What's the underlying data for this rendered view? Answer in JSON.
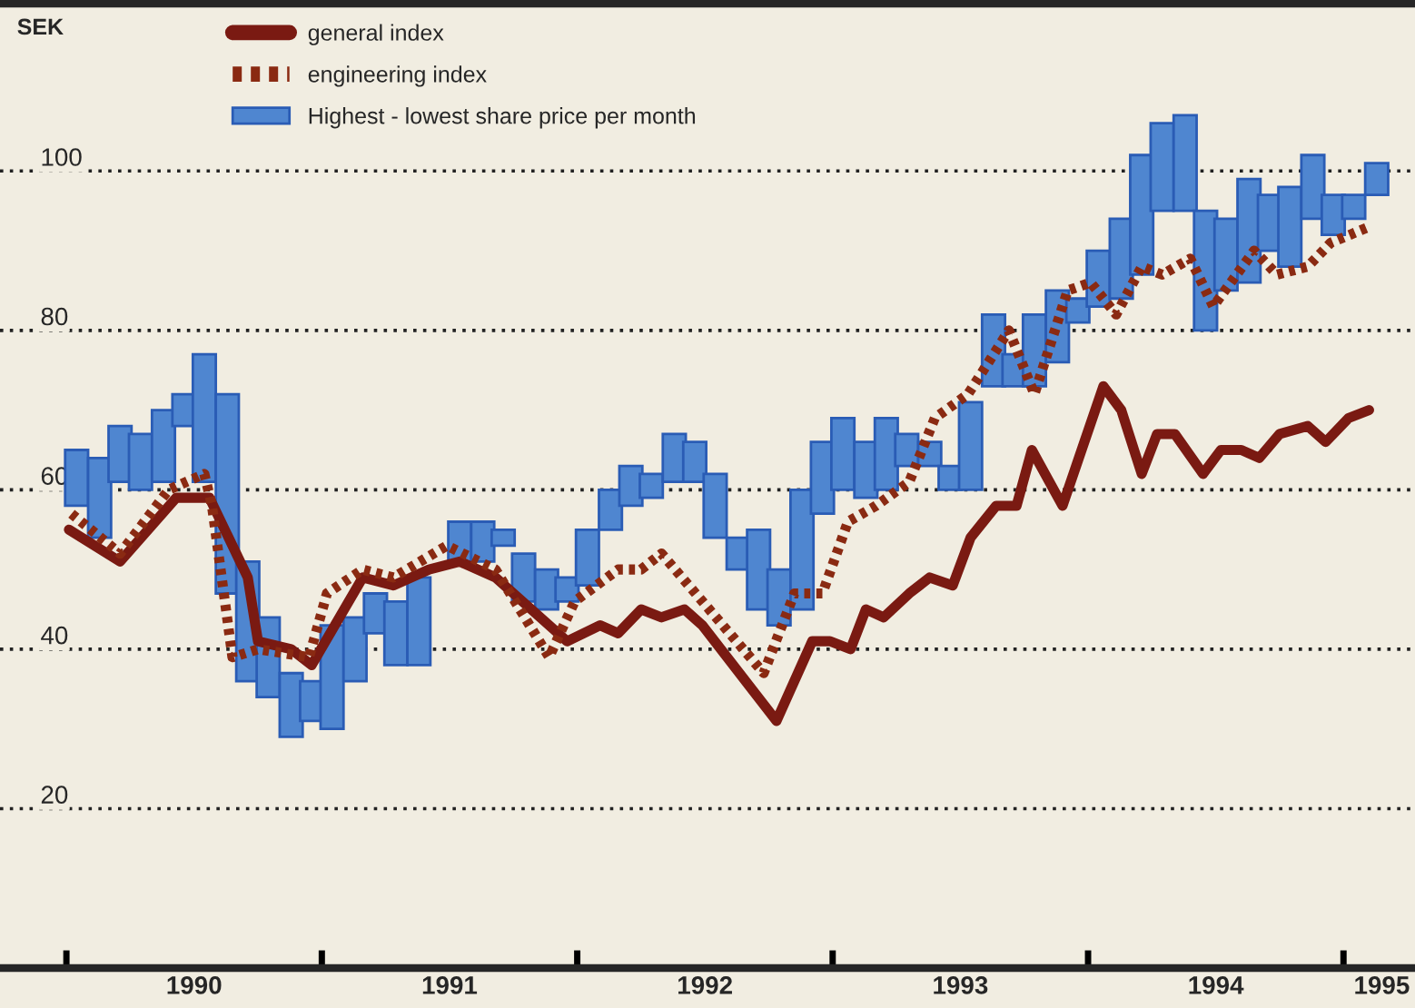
{
  "chart_data": {
    "type": "line",
    "ylabel": "SEK",
    "xlim": [
      1989.74,
      1995.28
    ],
    "ylim": [
      0,
      121
    ],
    "xticks": [
      {
        "value": 1990,
        "label": null
      },
      {
        "value": 1991,
        "label": null
      },
      {
        "value": 1992,
        "label": null
      },
      {
        "value": 1993,
        "label": null
      },
      {
        "value": 1994,
        "label": null
      },
      {
        "value": 1995,
        "label": null
      },
      {
        "value": 1990.5,
        "label": "1990"
      },
      {
        "value": 1991.5,
        "label": "1991"
      },
      {
        "value": 1992.5,
        "label": "1992"
      },
      {
        "value": 1993.5,
        "label": "1993"
      },
      {
        "value": 1994.5,
        "label": "1994"
      },
      {
        "value": 1995.15,
        "label": "1995"
      }
    ],
    "yticks": [
      20,
      40,
      60,
      80,
      100
    ],
    "grid": "y",
    "legend": "top left",
    "series": [
      {
        "name": "Highest - lowest share price per month",
        "type": "bar",
        "color": "#4f86d0",
        "x": [
          1990.04,
          1990.13,
          1990.21,
          1990.29,
          1990.38,
          1990.46,
          1990.54,
          1990.63,
          1990.71,
          1990.79,
          1990.88,
          1990.96,
          1991.04,
          1991.13,
          1991.21,
          1991.29,
          1991.38,
          1991.46,
          1991.54,
          1991.63,
          1991.71,
          1991.79,
          1991.88,
          1991.96,
          1992.04,
          1992.13,
          1992.21,
          1992.29,
          1992.38,
          1992.46,
          1992.54,
          1992.63,
          1992.71,
          1992.79,
          1992.88,
          1992.96,
          1993.04,
          1993.13,
          1993.21,
          1993.29,
          1993.38,
          1993.46,
          1993.54,
          1993.63,
          1993.71,
          1993.79,
          1993.88,
          1993.96,
          1994.04,
          1994.13,
          1994.21,
          1994.29,
          1994.38,
          1994.46,
          1994.54,
          1994.63,
          1994.71,
          1994.79,
          1994.88,
          1994.96,
          1995.04,
          1995.13
        ],
        "base": [
          58,
          54,
          61,
          60,
          61,
          68,
          61,
          47,
          36,
          34,
          29,
          31,
          30,
          36,
          42,
          38,
          38,
          null,
          51,
          51,
          53,
          46,
          45,
          46,
          48,
          55,
          58,
          59,
          61,
          61,
          54,
          50,
          45,
          43,
          45,
          57,
          60,
          59,
          60,
          63,
          63,
          60,
          60,
          73,
          73,
          73,
          76,
          81,
          83,
          84,
          87,
          95,
          95,
          80,
          85,
          86,
          90,
          88,
          94,
          92,
          94,
          97
        ],
        "values": [
          7,
          10,
          7,
          7,
          9,
          4,
          16,
          25,
          15,
          10,
          8,
          5,
          13,
          8,
          5,
          8,
          11,
          null,
          5,
          5,
          2,
          6,
          5,
          3,
          7,
          5,
          5,
          3,
          6,
          5,
          8,
          4,
          10,
          7,
          15,
          9,
          9,
          7,
          9,
          4,
          3,
          3,
          11,
          9,
          4,
          9,
          9,
          3,
          7,
          10,
          15,
          11,
          12,
          15,
          9,
          13,
          7,
          10,
          8,
          5,
          3,
          4
        ]
      },
      {
        "name": "general index",
        "line_style": "solid",
        "color": "#7a1a12",
        "x": [
          1990.01,
          1990.21,
          1990.43,
          1990.56,
          1990.71,
          1990.75,
          1990.88,
          1990.96,
          1991.16,
          1991.28,
          1991.42,
          1991.54,
          1991.68,
          1991.96,
          1992.09,
          1992.16,
          1992.25,
          1992.33,
          1992.42,
          1992.49,
          1992.78,
          1992.92,
          1992.99,
          1993.07,
          1993.13,
          1993.2,
          1993.3,
          1993.38,
          1993.47,
          1993.54,
          1993.64,
          1993.72,
          1993.78,
          1993.9,
          1994.06,
          1994.13,
          1994.21,
          1994.27,
          1994.34,
          1994.45,
          1994.52,
          1994.6,
          1994.67,
          1994.75,
          1994.86,
          1994.93,
          1995.02,
          1995.1
        ],
        "values": [
          55,
          51,
          59,
          59,
          49,
          41,
          40,
          38,
          49,
          48,
          50,
          51,
          49,
          41,
          43,
          42,
          45,
          44,
          45,
          43,
          31,
          41,
          41,
          40,
          45,
          44,
          47,
          49,
          48,
          54,
          58,
          58,
          65,
          58,
          73,
          70,
          62,
          67,
          67,
          62,
          65,
          65,
          64,
          67,
          68,
          66,
          69,
          70
        ]
      },
      {
        "name": "engineering index",
        "line_style": "dotted",
        "color": "#8a2a12",
        "x": [
          1990.02,
          1990.21,
          1990.4,
          1990.54,
          1990.57,
          1990.65,
          1990.75,
          1990.95,
          1991.02,
          1991.16,
          1991.28,
          1991.49,
          1991.68,
          1991.89,
          1991.99,
          1992.16,
          1992.25,
          1992.33,
          1992.73,
          1992.85,
          1992.96,
          1993.06,
          1993.17,
          1993.3,
          1993.4,
          1993.53,
          1993.69,
          1993.79,
          1993.92,
          1994.01,
          1994.11,
          1994.21,
          1994.29,
          1994.4,
          1994.49,
          1994.65,
          1994.74,
          1994.86,
          1994.95,
          1995.1
        ],
        "values": [
          57,
          52,
          60,
          62,
          58,
          39,
          40,
          39,
          47,
          50,
          49,
          53,
          50,
          39,
          46,
          50,
          50,
          52,
          37,
          47,
          47,
          56,
          58,
          61,
          69,
          72,
          80,
          72,
          85,
          86,
          82,
          88,
          87,
          89,
          83,
          90,
          87,
          88,
          91,
          93
        ]
      }
    ]
  }
}
